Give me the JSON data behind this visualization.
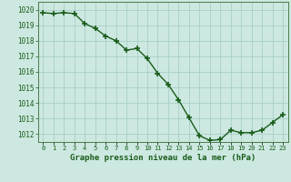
{
  "x": [
    0,
    1,
    2,
    3,
    4,
    5,
    6,
    7,
    8,
    9,
    10,
    11,
    12,
    13,
    14,
    15,
    16,
    17,
    18,
    19,
    20,
    21,
    22,
    23
  ],
  "y": [
    1019.8,
    1019.75,
    1019.8,
    1019.75,
    1019.1,
    1018.8,
    1018.3,
    1018.0,
    1017.4,
    1017.5,
    1016.85,
    1015.9,
    1015.2,
    1014.2,
    1013.05,
    1011.9,
    1011.6,
    1011.65,
    1012.25,
    1012.1,
    1012.1,
    1012.25,
    1012.75,
    1013.25
  ],
  "line_color": "#1a5c1a",
  "marker": "+",
  "marker_size": 5,
  "marker_linewidth": 1.2,
  "line_width": 1.0,
  "background_color": "#cce8e0",
  "grid_color": "#a8cfc7",
  "title": "Graphe pression niveau de la mer (hPa)",
  "title_color": "#1a5c1a",
  "tick_color": "#1a5c1a",
  "axis_color": "#4a7a4a",
  "ylim": [
    1011.5,
    1020.5
  ],
  "yticks": [
    1012,
    1013,
    1014,
    1015,
    1016,
    1017,
    1018,
    1019,
    1020
  ],
  "xticks": [
    0,
    1,
    2,
    3,
    4,
    5,
    6,
    7,
    8,
    9,
    10,
    11,
    12,
    13,
    14,
    15,
    16,
    17,
    18,
    19,
    20,
    21,
    22,
    23
  ],
  "xtick_labels": [
    "0",
    "1",
    "2",
    "3",
    "4",
    "5",
    "6",
    "7",
    "8",
    "9",
    "10",
    "11",
    "12",
    "13",
    "14",
    "15",
    "16",
    "17",
    "18",
    "19",
    "20",
    "21",
    "22",
    "23"
  ]
}
